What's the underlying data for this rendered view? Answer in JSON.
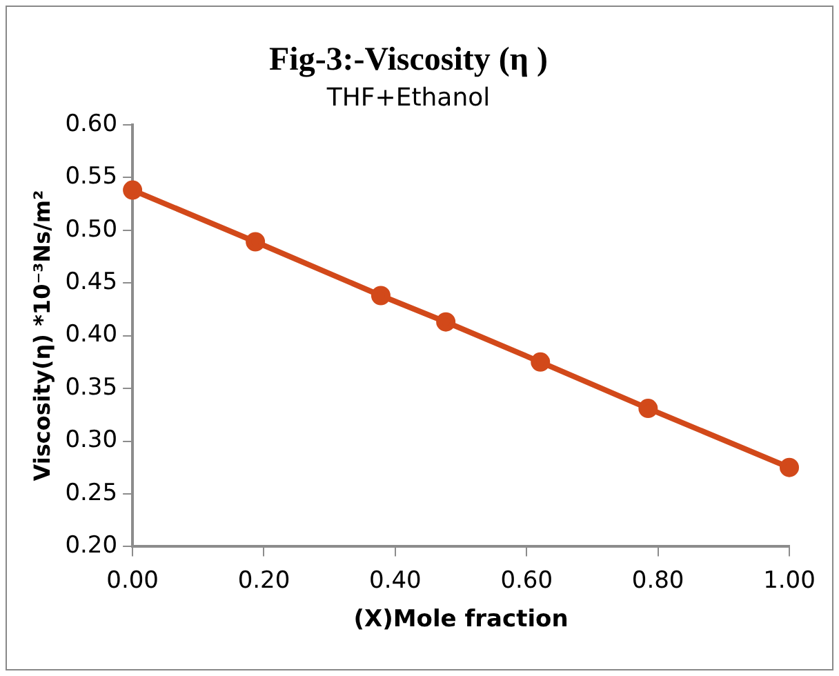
{
  "chart_data": {
    "type": "line",
    "title": "Fig-3:-Viscosity (η )",
    "subtitle": "THF+Ethanol",
    "xlabel": "(X)Mole fraction",
    "ylabel": "Viscosity(η) *10⁻³Ns/m²",
    "x": [
      0,
      0.187,
      0.378,
      0.477,
      0.621,
      0.785,
      1
    ],
    "series": [
      {
        "color": "#d2491a",
        "values": [
          0.538,
          0.489,
          0.438,
          0.413,
          0.375,
          0.331,
          0.275
        ]
      }
    ],
    "xlim": [
      0,
      1
    ],
    "xticks": [
      {
        "value": 0,
        "label": "0.00"
      },
      {
        "value": 0.2,
        "label": "0.20"
      },
      {
        "value": 0.4,
        "label": "0.40"
      },
      {
        "value": 0.6,
        "label": "0.60"
      },
      {
        "value": 0.8,
        "label": "0.80"
      },
      {
        "value": 1,
        "label": "1.00"
      }
    ],
    "ylim": [
      0.2,
      0.6
    ],
    "yticks": [
      {
        "value": 0.2,
        "label": "0.20"
      },
      {
        "value": 0.25,
        "label": "0.25"
      },
      {
        "value": 0.3,
        "label": "0.30"
      },
      {
        "value": 0.35,
        "label": "0.35"
      },
      {
        "value": 0.4,
        "label": "0.40"
      },
      {
        "value": 0.45,
        "label": "0.45"
      },
      {
        "value": 0.5,
        "label": "0.50"
      },
      {
        "value": 0.55,
        "label": "0.55"
      },
      {
        "value": 0.6,
        "label": "0.60"
      }
    ],
    "grid": false,
    "legend": false,
    "marker": "circle",
    "line_style": "solid"
  }
}
